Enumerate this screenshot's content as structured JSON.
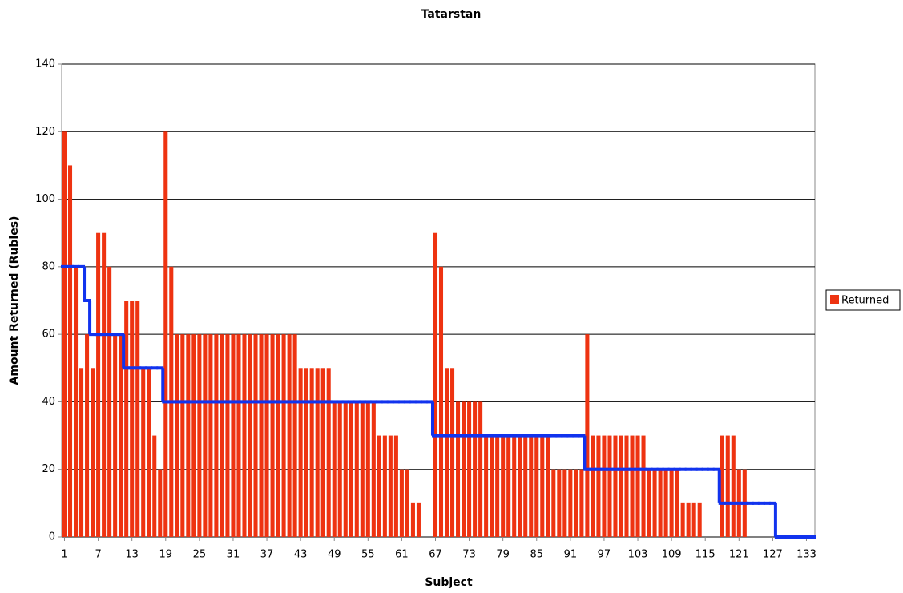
{
  "chart_data": {
    "type": "bar",
    "title": "Tatarstan",
    "x_label": "Subject",
    "y_label": "Amount Returned (Rubles)",
    "categories": [
      "1",
      null,
      null,
      null,
      null,
      null,
      "7",
      null,
      null,
      null,
      null,
      null,
      "13",
      null,
      null,
      null,
      null,
      null,
      "19",
      null,
      null,
      null,
      null,
      null,
      "25",
      null,
      null,
      null,
      null,
      null,
      "31",
      null,
      null,
      null,
      null,
      null,
      "37",
      null,
      null,
      null,
      null,
      null,
      "43",
      null,
      null,
      null,
      null,
      null,
      "49",
      null,
      null,
      null,
      null,
      null,
      "55",
      null,
      null,
      null,
      null,
      null,
      "61",
      null,
      null,
      null,
      null,
      null,
      "67",
      null,
      null,
      null,
      null,
      null,
      "73",
      null,
      null,
      null,
      null,
      null,
      "79",
      null,
      null,
      null,
      null,
      null,
      "85",
      null,
      null,
      null,
      null,
      null,
      "91",
      null,
      null,
      null,
      null,
      null,
      "97",
      null,
      null,
      null,
      null,
      null,
      "103",
      null,
      null,
      null,
      null,
      null,
      "109",
      null,
      null,
      null,
      null,
      null,
      "115",
      null,
      null,
      null,
      null,
      null,
      "121",
      null,
      null,
      null,
      null,
      null,
      "127",
      null,
      null,
      null,
      null,
      null,
      "133",
      null
    ],
    "series": [
      {
        "name": "Returned",
        "color": "#ee3311",
        "values": [
          120,
          110,
          80,
          50,
          60,
          50,
          90,
          90,
          80,
          60,
          60,
          70,
          70,
          70,
          50,
          50,
          30,
          20,
          120,
          80,
          60,
          60,
          60,
          60,
          60,
          60,
          60,
          60,
          60,
          60,
          60,
          60,
          60,
          60,
          60,
          60,
          60,
          60,
          60,
          60,
          60,
          60,
          50,
          50,
          50,
          50,
          50,
          50,
          40,
          40,
          40,
          40,
          40,
          40,
          40,
          40,
          30,
          30,
          30,
          30,
          20,
          20,
          10,
          10,
          0,
          0,
          90,
          80,
          50,
          50,
          40,
          40,
          40,
          40,
          40,
          30,
          30,
          30,
          30,
          30,
          30,
          30,
          30,
          30,
          30,
          30,
          30,
          20,
          20,
          20,
          20,
          20,
          20,
          60,
          30,
          30,
          30,
          30,
          30,
          30,
          30,
          30,
          30,
          30,
          20,
          20,
          20,
          20,
          20,
          20,
          10,
          10,
          10,
          10,
          0,
          0,
          0,
          30,
          30,
          30,
          20,
          20,
          0,
          0,
          0,
          0,
          0,
          0,
          0,
          0,
          0,
          0,
          0,
          0
        ]
      }
    ],
    "step_line": {
      "color": "#1133ee",
      "values": [
        80,
        80,
        80,
        80,
        70,
        60,
        60,
        60,
        60,
        60,
        60,
        50,
        50,
        50,
        50,
        50,
        50,
        50,
        40,
        40,
        40,
        40,
        40,
        40,
        40,
        40,
        40,
        40,
        40,
        40,
        40,
        40,
        40,
        40,
        40,
        40,
        40,
        40,
        40,
        40,
        40,
        40,
        40,
        40,
        40,
        40,
        40,
        40,
        40,
        40,
        40,
        40,
        40,
        40,
        40,
        40,
        40,
        40,
        40,
        40,
        40,
        40,
        40,
        40,
        40,
        40,
        30,
        30,
        30,
        30,
        30,
        30,
        30,
        30,
        30,
        30,
        30,
        30,
        30,
        30,
        30,
        30,
        30,
        30,
        30,
        30,
        30,
        30,
        30,
        30,
        30,
        30,
        30,
        20,
        20,
        20,
        20,
        20,
        20,
        20,
        20,
        20,
        20,
        20,
        20,
        20,
        20,
        20,
        20,
        20,
        20,
        20,
        20,
        20,
        20,
        20,
        20,
        10,
        10,
        10,
        10,
        10,
        10,
        10,
        10,
        10,
        10,
        0,
        0,
        0,
        0,
        0,
        0,
        0
      ]
    },
    "ylim": [
      0,
      140
    ],
    "yticks": [
      0,
      20,
      40,
      60,
      80,
      100,
      120,
      140
    ],
    "grid": true,
    "legend": "right"
  }
}
